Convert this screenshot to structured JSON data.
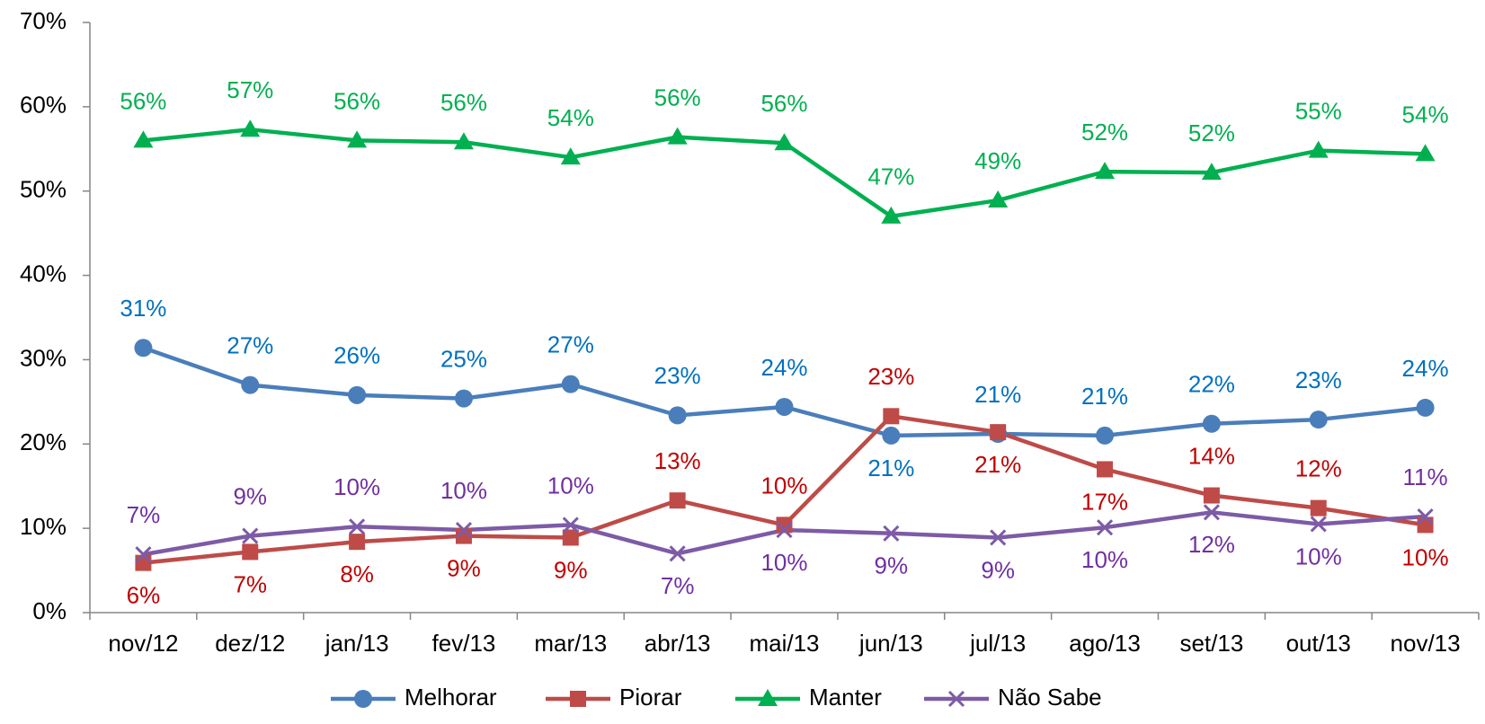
{
  "chart_data": {
    "type": "line",
    "categories": [
      "nov/12",
      "dez/12",
      "jan/13",
      "fev/13",
      "mar/13",
      "abr/13",
      "mai/13",
      "jun/13",
      "jul/13",
      "ago/13",
      "set/13",
      "out/13",
      "nov/13"
    ],
    "series": [
      {
        "name": "Melhorar",
        "color": "#4a7ebb",
        "marker": "circle",
        "values": [
          31.4,
          27.0,
          25.8,
          25.4,
          27.1,
          23.4,
          24.4,
          21.0,
          21.2,
          21.0,
          22.4,
          22.9,
          24.3
        ],
        "value_labels": [
          "31%",
          "27%",
          "26%",
          "25%",
          "27%",
          "23%",
          "24%",
          "21%",
          "21%",
          "21%",
          "22%",
          "23%",
          "24%"
        ]
      },
      {
        "name": "Piorar",
        "color": "#be4b48",
        "marker": "square",
        "values": [
          5.9,
          7.2,
          8.4,
          9.1,
          8.9,
          13.3,
          10.4,
          23.3,
          21.4,
          17.0,
          13.9,
          12.4,
          10.4
        ],
        "value_labels": [
          "6%",
          "7%",
          "8%",
          "9%",
          "9%",
          "13%",
          "10%",
          "23%",
          "21%",
          "17%",
          "14%",
          "12%",
          "10%"
        ]
      },
      {
        "name": "Manter",
        "color": "#00b050",
        "marker": "triangle",
        "values": [
          56.0,
          57.3,
          56.0,
          55.8,
          54.0,
          56.4,
          55.7,
          47.0,
          48.9,
          52.3,
          52.2,
          54.8,
          54.4
        ],
        "value_labels": [
          "56%",
          "57%",
          "56%",
          "56%",
          "54%",
          "56%",
          "56%",
          "47%",
          "49%",
          "52%",
          "52%",
          "55%",
          "54%"
        ]
      },
      {
        "name": "Não Sabe",
        "color": "#7d5ba6",
        "marker": "x",
        "values": [
          6.9,
          9.1,
          10.2,
          9.8,
          10.4,
          7.0,
          9.8,
          9.4,
          8.9,
          10.1,
          11.9,
          10.5,
          11.4
        ],
        "value_labels": [
          "7%",
          "9%",
          "10%",
          "10%",
          "10%",
          "7%",
          "10%",
          "9%",
          "9%",
          "10%",
          "12%",
          "10%",
          "11%"
        ]
      }
    ],
    "ylim": [
      0,
      70
    ],
    "yticks": [
      {
        "value": 0,
        "label": "0%"
      },
      {
        "value": 10,
        "label": "10%"
      },
      {
        "value": 20,
        "label": "20%"
      },
      {
        "value": 30,
        "label": "30%"
      },
      {
        "value": 40,
        "label": "40%"
      },
      {
        "value": 50,
        "label": "50%"
      },
      {
        "value": 60,
        "label": "60%"
      },
      {
        "value": 70,
        "label": "70%"
      }
    ],
    "grid": false,
    "legend": "bottom"
  }
}
